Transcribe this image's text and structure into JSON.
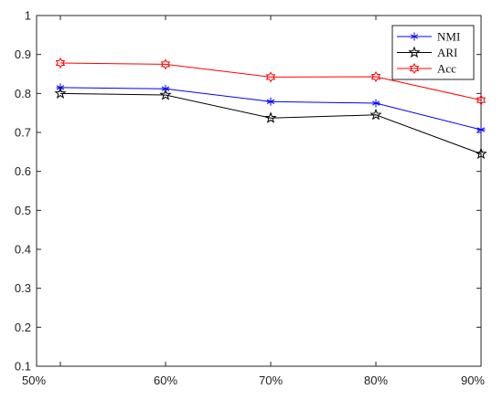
{
  "chart_data": {
    "type": "line",
    "categories": [
      "50%",
      "60%",
      "70%",
      "80%",
      "90%"
    ],
    "series": [
      {
        "name": "NMI",
        "values": [
          0.815,
          0.812,
          0.779,
          0.775,
          0.707
        ],
        "color": "#0000ff",
        "marker": "asterisk"
      },
      {
        "name": "ARI",
        "values": [
          0.8,
          0.796,
          0.737,
          0.745,
          0.645
        ],
        "color": "#000000",
        "marker": "pentagram"
      },
      {
        "name": "Acc",
        "values": [
          0.878,
          0.875,
          0.842,
          0.843,
          0.783
        ],
        "color": "#ff0000",
        "marker": "hexagram"
      }
    ],
    "ylim": [
      0.1,
      1.0
    ],
    "yticks": [
      0.1,
      0.2,
      0.3,
      0.4,
      0.5,
      0.6,
      0.7,
      0.8,
      0.9,
      1
    ],
    "ytick_labels": [
      "0.1",
      "0.2",
      "0.3",
      "0.4",
      "0.5",
      "0.6",
      "0.7",
      "0.8",
      "0.9",
      "1"
    ],
    "grid": false,
    "legend_position": "top-right"
  }
}
